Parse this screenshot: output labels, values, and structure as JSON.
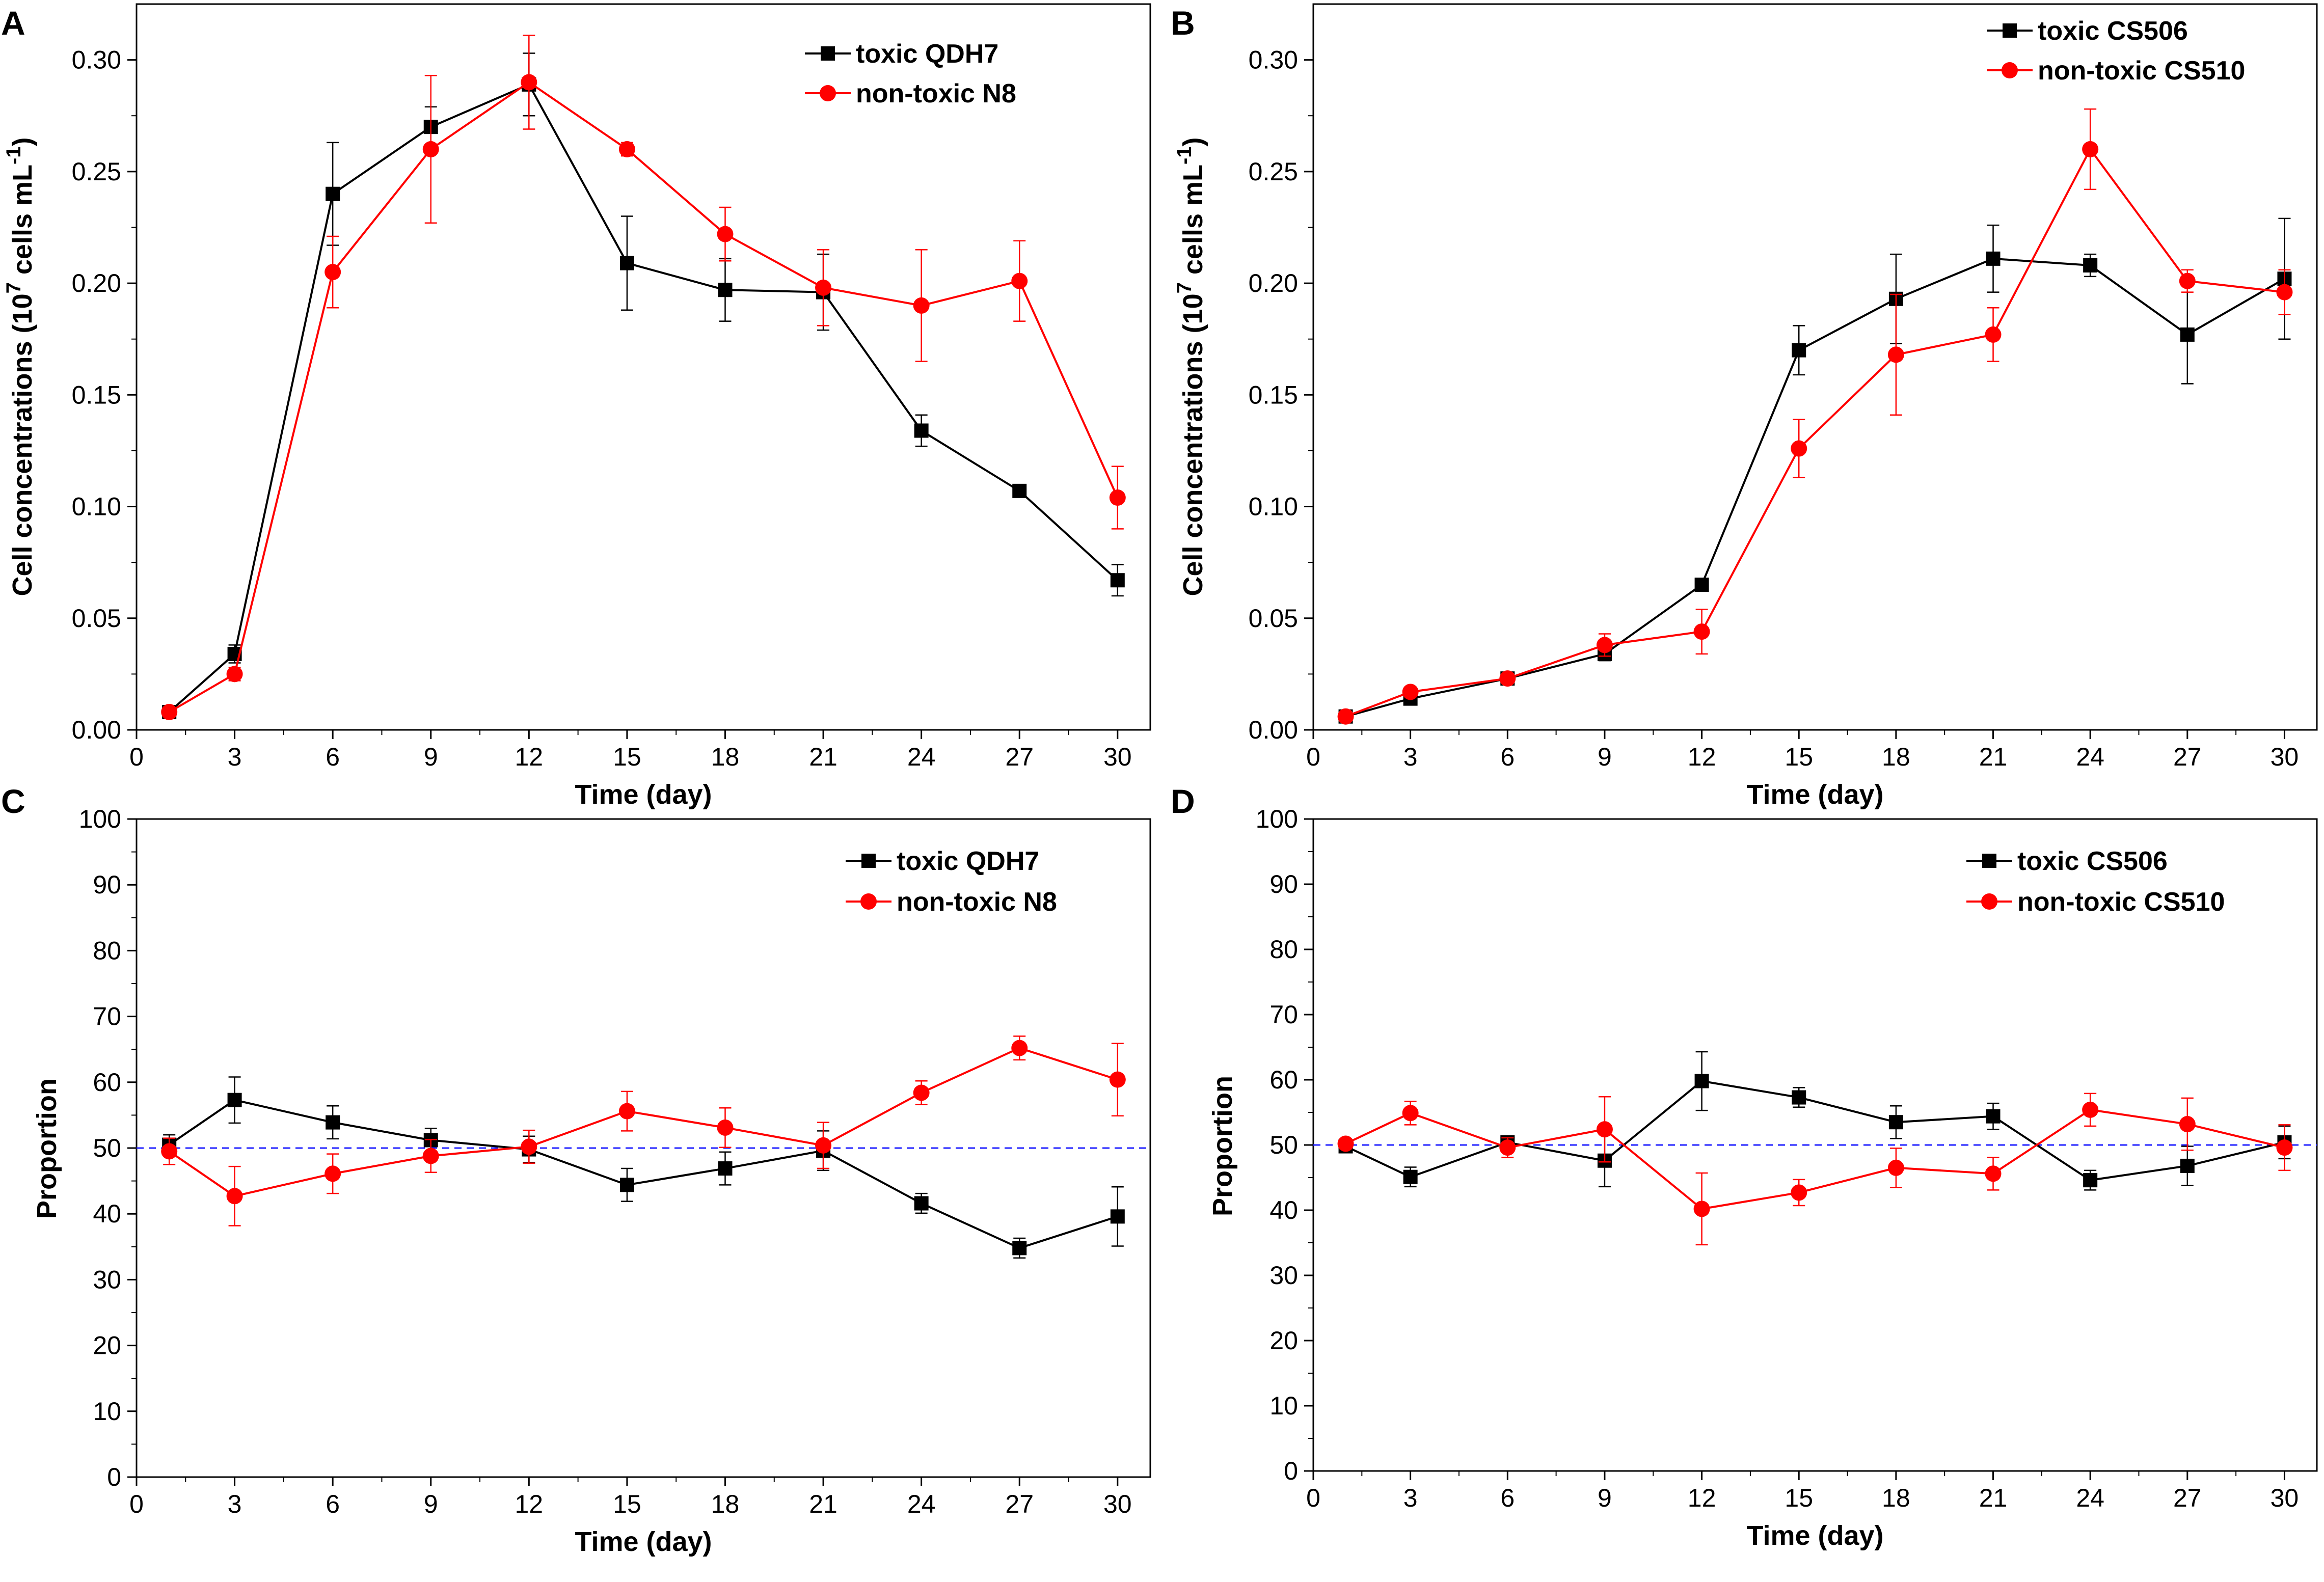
{
  "chart_data": [
    {
      "panel": "A",
      "type": "line",
      "ylabel_main": "Cell concentrations (10",
      "ylabel_sup1": "7",
      "ylabel_mid": " cells mL",
      "ylabel_sup2": "-1",
      "ylabel_end": ")",
      "xlabel": "Time (day)",
      "x_ticks": [
        0,
        3,
        6,
        9,
        12,
        15,
        18,
        21,
        24,
        27,
        30
      ],
      "y_ticks": [
        0.0,
        0.05,
        0.1,
        0.15,
        0.2,
        0.25,
        0.3
      ],
      "y_tick_labels": [
        "0.00",
        "0.05",
        "0.10",
        "0.15",
        "0.20",
        "0.25",
        "0.30"
      ],
      "xlim": [
        0,
        31
      ],
      "ylim": [
        0,
        0.325
      ],
      "legend_position": "top-right",
      "reference_line": null,
      "series": [
        {
          "name": "toxic QDH7",
          "color": "#000000",
          "marker": "square",
          "x": [
            1,
            3,
            6,
            9,
            12,
            15,
            18,
            21,
            24,
            27,
            30
          ],
          "y": [
            0.008,
            0.034,
            0.24,
            0.27,
            0.289,
            0.209,
            0.197,
            0.196,
            0.134,
            0.107,
            0.067
          ],
          "err": [
            0.002,
            0.004,
            0.023,
            0.009,
            0.014,
            0.021,
            0.014,
            0.017,
            0.007,
            0.002,
            0.007
          ]
        },
        {
          "name": "non-toxic N8",
          "color": "#ff0000",
          "marker": "circle",
          "x": [
            1,
            3,
            6,
            9,
            12,
            15,
            18,
            21,
            24,
            27,
            30
          ],
          "y": [
            0.008,
            0.025,
            0.205,
            0.26,
            0.29,
            0.26,
            0.222,
            0.198,
            0.19,
            0.201,
            0.104
          ],
          "err": [
            0.002,
            0.003,
            0.016,
            0.033,
            0.021,
            0.003,
            0.012,
            0.017,
            0.025,
            0.018,
            0.014
          ]
        }
      ]
    },
    {
      "panel": "B",
      "type": "line",
      "ylabel_main": "Cell concentrations (10",
      "ylabel_sup1": "7",
      "ylabel_mid": " cells mL",
      "ylabel_sup2": "-1",
      "ylabel_end": ")",
      "xlabel": "Time (day)",
      "x_ticks": [
        0,
        3,
        6,
        9,
        12,
        15,
        18,
        21,
        24,
        27,
        30
      ],
      "y_ticks": [
        0.0,
        0.05,
        0.1,
        0.15,
        0.2,
        0.25,
        0.3
      ],
      "y_tick_labels": [
        "0.00",
        "0.05",
        "0.10",
        "0.15",
        "0.20",
        "0.25",
        "0.30"
      ],
      "xlim": [
        0,
        31
      ],
      "ylim": [
        0,
        0.325
      ],
      "legend_position": "top-right",
      "reference_line": null,
      "series": [
        {
          "name": "toxic CS506",
          "color": "#000000",
          "marker": "square",
          "x": [
            1,
            3,
            6,
            9,
            12,
            15,
            18,
            21,
            24,
            27,
            30
          ],
          "y": [
            0.006,
            0.014,
            0.023,
            0.034,
            0.065,
            0.17,
            0.193,
            0.211,
            0.208,
            0.177,
            0.202
          ],
          "err": [
            0.001,
            0.002,
            0.002,
            0.003,
            0.002,
            0.011,
            0.02,
            0.015,
            0.005,
            0.022,
            0.027
          ]
        },
        {
          "name": "non-toxic CS510",
          "color": "#ff0000",
          "marker": "circle",
          "x": [
            1,
            3,
            6,
            9,
            12,
            15,
            18,
            21,
            24,
            27,
            30
          ],
          "y": [
            0.006,
            0.017,
            0.023,
            0.038,
            0.044,
            0.126,
            0.168,
            0.177,
            0.26,
            0.201,
            0.196
          ],
          "err": [
            0.001,
            0.002,
            0.002,
            0.005,
            0.01,
            0.013,
            0.027,
            0.012,
            0.018,
            0.005,
            0.01
          ]
        }
      ]
    },
    {
      "panel": "C",
      "type": "line",
      "ylabel_main": "Proportion",
      "xlabel": "Time (day)",
      "x_ticks": [
        0,
        3,
        6,
        9,
        12,
        15,
        18,
        21,
        24,
        27,
        30
      ],
      "y_ticks": [
        0,
        10,
        20,
        30,
        40,
        50,
        60,
        70,
        80,
        90,
        100
      ],
      "y_tick_labels": [
        "0",
        "10",
        "20",
        "30",
        "40",
        "50",
        "60",
        "70",
        "80",
        "90",
        "100"
      ],
      "xlim": [
        0,
        31
      ],
      "ylim": [
        0,
        100
      ],
      "legend_position": "top-right",
      "reference_line": 50,
      "series": [
        {
          "name": "toxic QDH7",
          "color": "#000000",
          "marker": "square",
          "x": [
            1,
            3,
            6,
            9,
            12,
            15,
            18,
            21,
            24,
            27,
            30
          ],
          "y": [
            50.5,
            57.3,
            53.9,
            51.2,
            49.8,
            44.4,
            46.9,
            49.6,
            41.6,
            34.8,
            39.6
          ],
          "err": [
            1.5,
            3.5,
            2.5,
            1.8,
            2.0,
            2.5,
            2.5,
            3.0,
            1.5,
            1.5,
            4.5
          ]
        },
        {
          "name": "non-toxic N8",
          "color": "#ff0000",
          "marker": "circle",
          "x": [
            1,
            3,
            6,
            9,
            12,
            15,
            18,
            21,
            24,
            27,
            30
          ],
          "y": [
            49.5,
            42.7,
            46.1,
            48.8,
            50.2,
            55.6,
            53.1,
            50.4,
            58.4,
            65.2,
            60.4
          ],
          "err": [
            2.0,
            4.5,
            3.0,
            2.5,
            2.5,
            3.0,
            3.0,
            3.5,
            1.8,
            1.8,
            5.5
          ]
        }
      ]
    },
    {
      "panel": "D",
      "type": "line",
      "ylabel_main": "Proportion",
      "xlabel": "Time (day)",
      "x_ticks": [
        0,
        3,
        6,
        9,
        12,
        15,
        18,
        21,
        24,
        27,
        30
      ],
      "y_ticks": [
        0,
        10,
        20,
        30,
        40,
        50,
        60,
        70,
        80,
        90,
        100
      ],
      "y_tick_labels": [
        "0",
        "10",
        "20",
        "30",
        "40",
        "50",
        "60",
        "70",
        "80",
        "90",
        "100"
      ],
      "xlim": [
        0,
        31
      ],
      "ylim": [
        0,
        100
      ],
      "legend_position": "top-right",
      "reference_line": 50,
      "series": [
        {
          "name": "toxic CS506",
          "color": "#000000",
          "marker": "square",
          "x": [
            1,
            3,
            6,
            9,
            12,
            15,
            18,
            21,
            24,
            27,
            30
          ],
          "y": [
            49.8,
            45.1,
            50.4,
            47.6,
            59.8,
            57.3,
            53.5,
            54.4,
            44.6,
            46.8,
            50.4
          ],
          "err": [
            0.8,
            1.5,
            1.0,
            4.0,
            4.5,
            1.5,
            2.5,
            2.0,
            1.5,
            3.0,
            2.5
          ]
        },
        {
          "name": "non-toxic CS510",
          "color": "#ff0000",
          "marker": "circle",
          "x": [
            1,
            3,
            6,
            9,
            12,
            15,
            18,
            21,
            24,
            27,
            30
          ],
          "y": [
            50.2,
            54.9,
            49.6,
            52.4,
            40.2,
            42.7,
            46.5,
            45.6,
            55.4,
            53.2,
            49.6
          ],
          "err": [
            0.8,
            1.8,
            1.5,
            5.0,
            5.5,
            2.0,
            3.0,
            2.5,
            2.5,
            4.0,
            3.5
          ]
        }
      ]
    }
  ]
}
